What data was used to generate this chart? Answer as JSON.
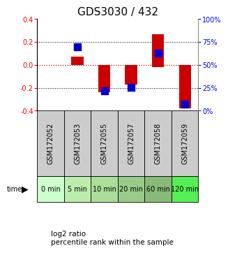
{
  "title": "GDS3030 / 432",
  "samples": [
    "GSM172052",
    "GSM172053",
    "GSM172055",
    "GSM172057",
    "GSM172058",
    "GSM172059"
  ],
  "time_labels": [
    "0 min",
    "5 min",
    "10 min",
    "20 min",
    "60 min",
    "120 min"
  ],
  "time_colors": [
    "#ccffcc",
    "#bbeeaa",
    "#aade99",
    "#99cc88",
    "#88bb77",
    "#55ee55"
  ],
  "log2_ratio_top": [
    0.0,
    0.075,
    0.0,
    0.0,
    0.27,
    0.0
  ],
  "log2_ratio_bottom": [
    0.0,
    0.0,
    -0.24,
    -0.17,
    -0.02,
    -0.38
  ],
  "percentile_rank_y": [
    null,
    0.155,
    -0.23,
    -0.195,
    0.105,
    -0.345
  ],
  "ylim": [
    -0.4,
    0.4
  ],
  "yticks_left": [
    -0.4,
    -0.2,
    0.0,
    0.2,
    0.4
  ],
  "yticks_right": [
    0,
    25,
    50,
    75,
    100
  ],
  "bar_color": "#cc0000",
  "dot_color": "#0000cc",
  "zero_line_color": "#cc0000",
  "grid_color": "#000000",
  "bg_color": "#ffffff",
  "sample_bg": "#cccccc",
  "bar_width": 0.45,
  "dot_size": 55,
  "title_fontsize": 11,
  "tick_fontsize": 7,
  "time_fontsize": 7,
  "legend_fontsize": 7.5
}
